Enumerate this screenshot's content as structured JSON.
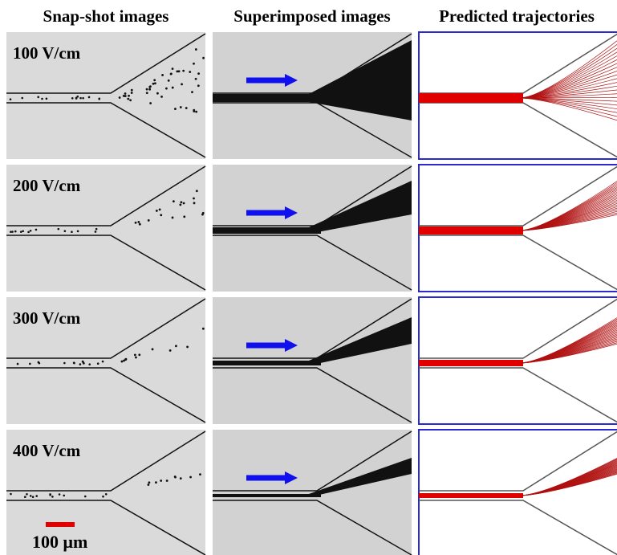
{
  "columns": [
    "Snap-shot images",
    "Superimposed images",
    "Predicted trajectories"
  ],
  "rows": [
    "100 V/cm",
    "200 V/cm",
    "300 V/cm",
    "400 V/cm"
  ],
  "scale_bar": "100 μm"
}
